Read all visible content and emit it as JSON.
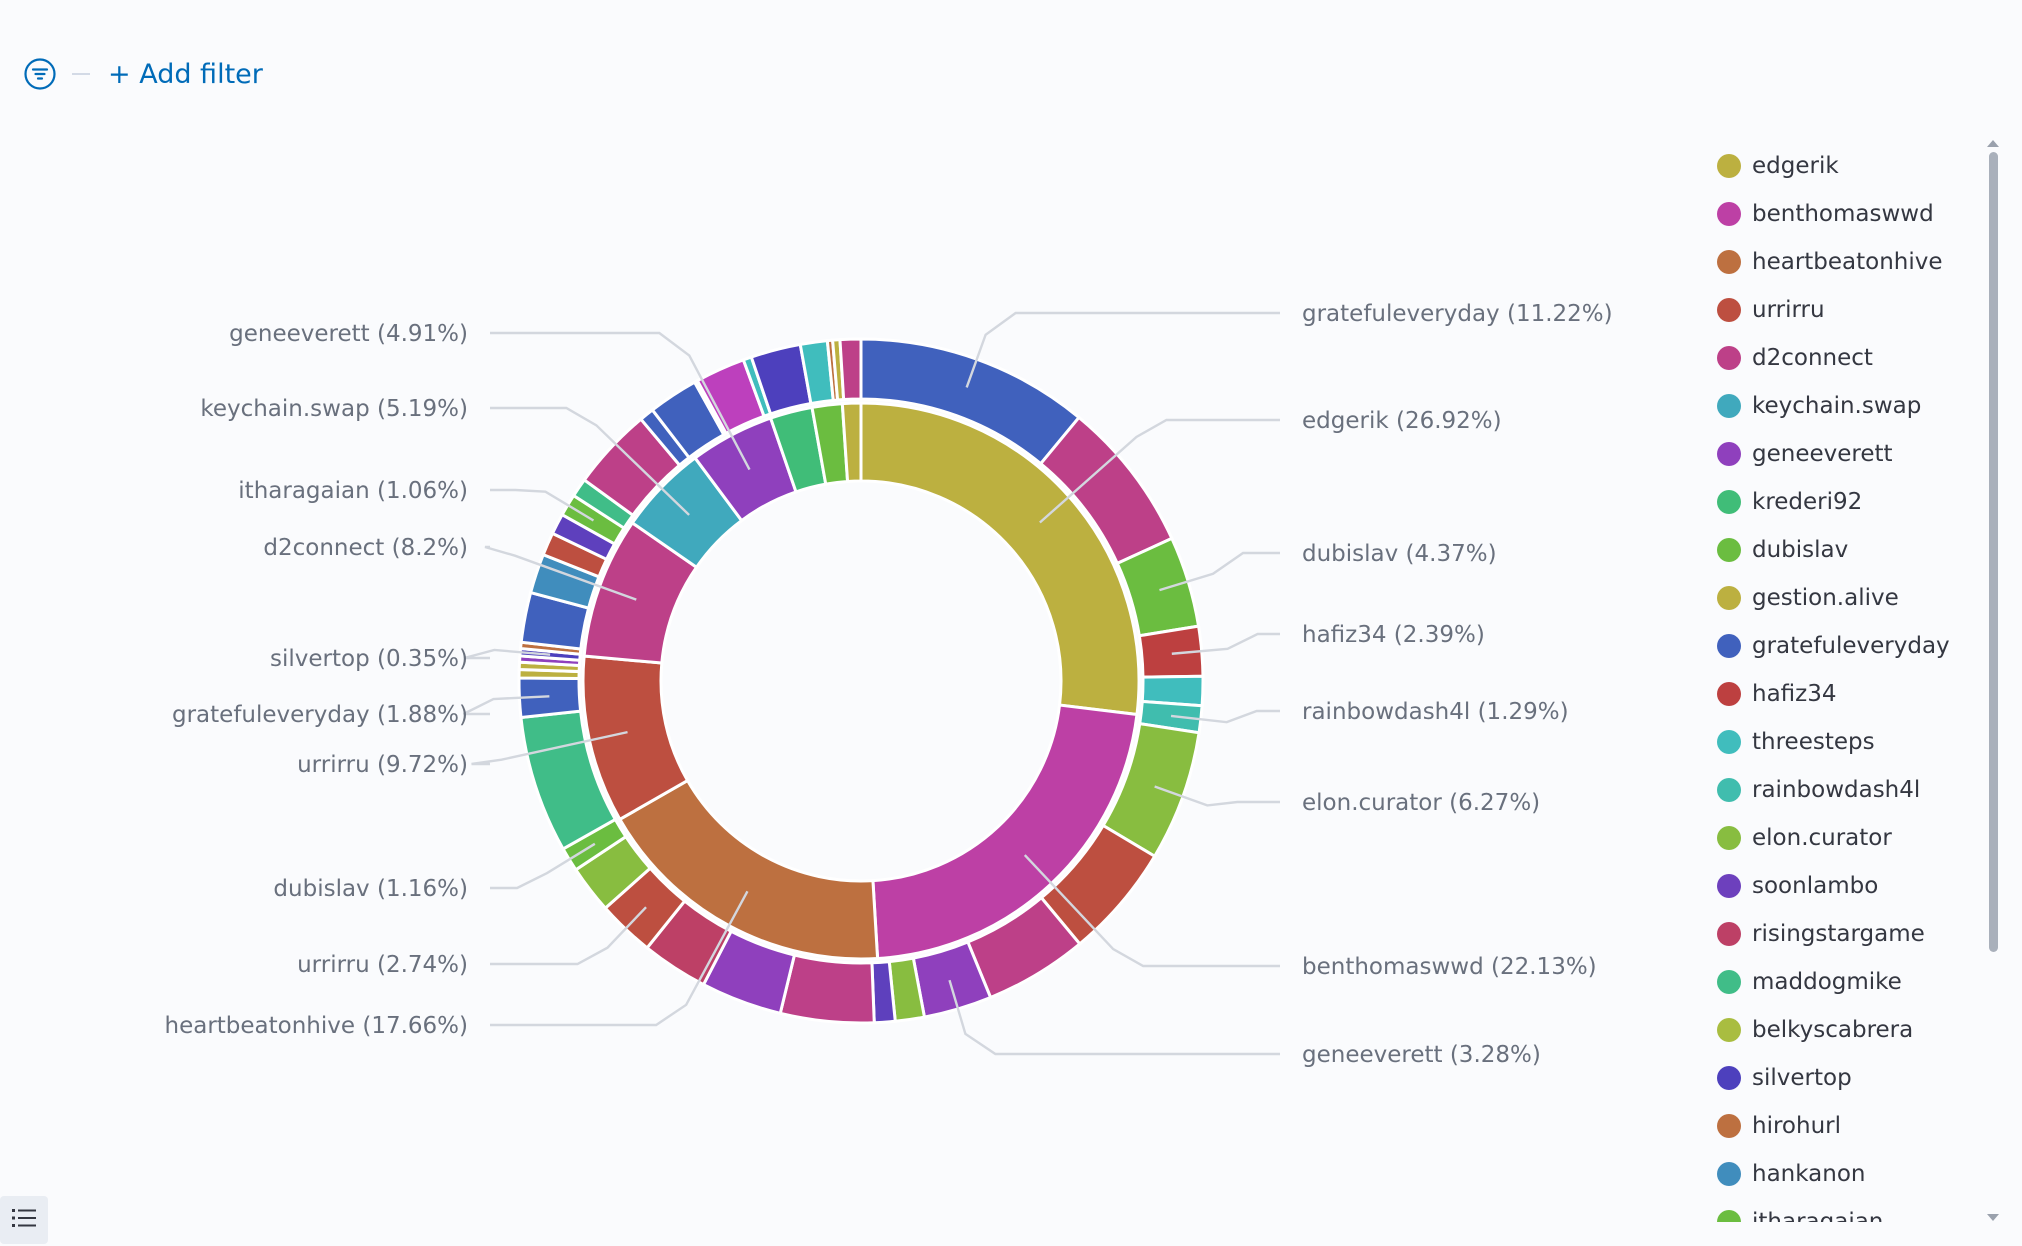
{
  "filter_bar": {
    "add_filter_label": "+ Add filter"
  },
  "chart_data": {
    "type": "pie",
    "donut": true,
    "inner_ring": [
      {
        "label": "edgerik",
        "percent": 26.92,
        "color": "#bcb040"
      },
      {
        "label": "benthomaswwd",
        "percent": 22.13,
        "color": "#bd40a5"
      },
      {
        "label": "heartbeatonhive",
        "percent": 17.66,
        "color": "#bd7040"
      },
      {
        "label": "urrirru",
        "percent": 9.72,
        "color": "#bd4f40"
      },
      {
        "label": "d2connect",
        "percent": 8.2,
        "color": "#bd4088"
      },
      {
        "label": "keychain.swap",
        "percent": 5.19,
        "color": "#40a9bd"
      },
      {
        "label": "geneeverett",
        "percent": 4.91,
        "color": "#8f40bd"
      },
      {
        "label": "krederi92",
        "percent": 2.45,
        "color": "#40bd78"
      },
      {
        "label": "dubislav",
        "percent": 1.75,
        "color": "#6bbd40"
      },
      {
        "label": "gestion.alive",
        "percent": 1.07,
        "color": "#bcb040"
      }
    ],
    "outer_ring": [
      {
        "label": "gratefuleveryday",
        "percent": 11.22,
        "color": "#4061bd"
      },
      {
        "label": "",
        "percent": 7.3,
        "color": "#bd4088"
      },
      {
        "label": "dubislav",
        "percent": 4.37,
        "color": "#6bbd40"
      },
      {
        "label": "hafiz34",
        "percent": 2.39,
        "color": "#bd4040"
      },
      {
        "label": "",
        "percent": 1.4,
        "color": "#40bdbd"
      },
      {
        "label": "rainbowdash4l",
        "percent": 1.29,
        "color": "#40bdae"
      },
      {
        "label": "elon.curator",
        "percent": 6.27,
        "color": "#88bd40"
      },
      {
        "label": "",
        "percent": 5.5,
        "color": "#bd4f40"
      },
      {
        "label": "benthomaswwd",
        "percent": 4.96,
        "color": "#bd4088"
      },
      {
        "label": "geneeverett",
        "percent": 3.28,
        "color": "#8f40bd"
      },
      {
        "label": "",
        "percent": 1.4,
        "color": "#88bd40"
      },
      {
        "label": "",
        "percent": 1.0,
        "color": "#5e40bd"
      },
      {
        "label": "",
        "percent": 4.5,
        "color": "#bd4088"
      },
      {
        "label": "",
        "percent": 3.9,
        "color": "#8f40bd"
      },
      {
        "label": "",
        "percent": 3.2,
        "color": "#bd4066"
      },
      {
        "label": "urrirru",
        "percent": 2.74,
        "color": "#bd4f40"
      },
      {
        "label": "",
        "percent": 2.3,
        "color": "#88bd40"
      },
      {
        "label": "dubislav",
        "percent": 1.16,
        "color": "#6bbd40"
      },
      {
        "label": "",
        "percent": 6.6,
        "color": "#40bd88"
      },
      {
        "label": "gratefuleveryday",
        "percent": 1.88,
        "color": "#4061bd"
      },
      {
        "label": "",
        "percent": 0.4,
        "color": "#bcb040"
      },
      {
        "label": "",
        "percent": 0.35,
        "color": "#bcb040"
      },
      {
        "label": "",
        "percent": 0.3,
        "color": "#8f40bd"
      },
      {
        "label": "silvertop",
        "percent": 0.35,
        "color": "#4d40bd"
      },
      {
        "label": "",
        "percent": 0.3,
        "color": "#bd7040"
      },
      {
        "label": "",
        "percent": 2.4,
        "color": "#4061bd"
      },
      {
        "label": "",
        "percent": 1.9,
        "color": "#408dbd"
      },
      {
        "label": "",
        "percent": 1.1,
        "color": "#bd4f40"
      },
      {
        "label": "",
        "percent": 1.0,
        "color": "#5e40bd"
      },
      {
        "label": "itharagaian",
        "percent": 1.06,
        "color": "#6bbd40"
      },
      {
        "label": "",
        "percent": 0.9,
        "color": "#40bd88"
      },
      {
        "label": "d2connect",
        "percent": 3.95,
        "color": "#bd4088"
      },
      {
        "label": "",
        "percent": 0.7,
        "color": "#4061bd"
      },
      {
        "label": "keychain.swap",
        "percent": 2.4,
        "color": "#4061bd"
      },
      {
        "label": "",
        "percent": 0.15,
        "color": "#ffffff"
      },
      {
        "label": "geneeverett",
        "percent": 2.4,
        "color": "#bd40bd"
      },
      {
        "label": "",
        "percent": 0.4,
        "color": "#40bdbd"
      },
      {
        "label": "",
        "percent": 2.4,
        "color": "#4d40bd"
      },
      {
        "label": "",
        "percent": 1.3,
        "color": "#40bdbd"
      },
      {
        "label": "",
        "percent": 0.25,
        "color": "#bd7040"
      },
      {
        "label": "",
        "percent": 0.35,
        "color": "#bcb040"
      },
      {
        "label": "",
        "percent": 1.0,
        "color": "#bd4088"
      }
    ]
  },
  "callouts": {
    "left": [
      {
        "text": "geneeverett (4.91%)",
        "side": "left",
        "ring": "inner",
        "index": 6
      },
      {
        "text": "keychain.swap (5.19%)",
        "side": "left",
        "ring": "inner",
        "index": 5
      },
      {
        "text": "itharagaian (1.06%)",
        "side": "left",
        "ring": "outer",
        "index": 29
      },
      {
        "text": "d2connect (8.2%)",
        "side": "left",
        "ring": "inner",
        "index": 4
      },
      {
        "text": "silvertop (0.35%)",
        "side": "left",
        "ring": "outer",
        "index": 23
      },
      {
        "text": "gratefuleveryday (1.88%)",
        "side": "left",
        "ring": "outer",
        "index": 19
      },
      {
        "text": "urrirru (9.72%)",
        "side": "left",
        "ring": "inner",
        "index": 3
      },
      {
        "text": "dubislav (1.16%)",
        "side": "left",
        "ring": "outer",
        "index": 17
      },
      {
        "text": "urrirru (2.74%)",
        "side": "left",
        "ring": "outer",
        "index": 15
      },
      {
        "text": "heartbeatonhive (17.66%)",
        "side": "left",
        "ring": "inner",
        "index": 2
      }
    ],
    "right": [
      {
        "text": "gratefuleveryday (11.22%)",
        "side": "right",
        "ring": "outer",
        "index": 0
      },
      {
        "text": "edgerik (26.92%)",
        "side": "right",
        "ring": "inner",
        "index": 0
      },
      {
        "text": "dubislav (4.37%)",
        "side": "right",
        "ring": "outer",
        "index": 2
      },
      {
        "text": "hafiz34 (2.39%)",
        "side": "right",
        "ring": "outer",
        "index": 3
      },
      {
        "text": "rainbowdash4l (1.29%)",
        "side": "right",
        "ring": "outer",
        "index": 5
      },
      {
        "text": "elon.curator (6.27%)",
        "side": "right",
        "ring": "outer",
        "index": 6
      },
      {
        "text": "benthomaswwd (22.13%)",
        "side": "right",
        "ring": "inner",
        "index": 1
      },
      {
        "text": "geneeverett (3.28%)",
        "side": "right",
        "ring": "outer",
        "index": 9
      }
    ]
  },
  "legend": {
    "items": [
      {
        "label": "edgerik",
        "color": "#bcb040"
      },
      {
        "label": "benthomaswwd",
        "color": "#bd40a5"
      },
      {
        "label": "heartbeatonhive",
        "color": "#bd7040"
      },
      {
        "label": "urrirru",
        "color": "#bd4f40"
      },
      {
        "label": "d2connect",
        "color": "#bd4088"
      },
      {
        "label": "keychain.swap",
        "color": "#40a9bd"
      },
      {
        "label": "geneeverett",
        "color": "#8f40bd"
      },
      {
        "label": "krederi92",
        "color": "#40bd78"
      },
      {
        "label": "dubislav",
        "color": "#6bbd40"
      },
      {
        "label": "gestion.alive",
        "color": "#bcb040"
      },
      {
        "label": "gratefuleveryday",
        "color": "#4061bd"
      },
      {
        "label": "hafiz34",
        "color": "#bd4040"
      },
      {
        "label": "threesteps",
        "color": "#40bdbd"
      },
      {
        "label": "rainbowdash4l",
        "color": "#40bdae"
      },
      {
        "label": "elon.curator",
        "color": "#88bd40"
      },
      {
        "label": "soonlambo",
        "color": "#6d40bd"
      },
      {
        "label": "risingstargame",
        "color": "#bd4066"
      },
      {
        "label": "maddogmike",
        "color": "#40bd88"
      },
      {
        "label": "belkyscabrera",
        "color": "#a9bd40"
      },
      {
        "label": "silvertop",
        "color": "#4d40bd"
      },
      {
        "label": "hirohurl",
        "color": "#bd7040"
      },
      {
        "label": "hankanon",
        "color": "#408dbd"
      },
      {
        "label": "itharagaian",
        "color": "#6bbd40"
      }
    ]
  }
}
